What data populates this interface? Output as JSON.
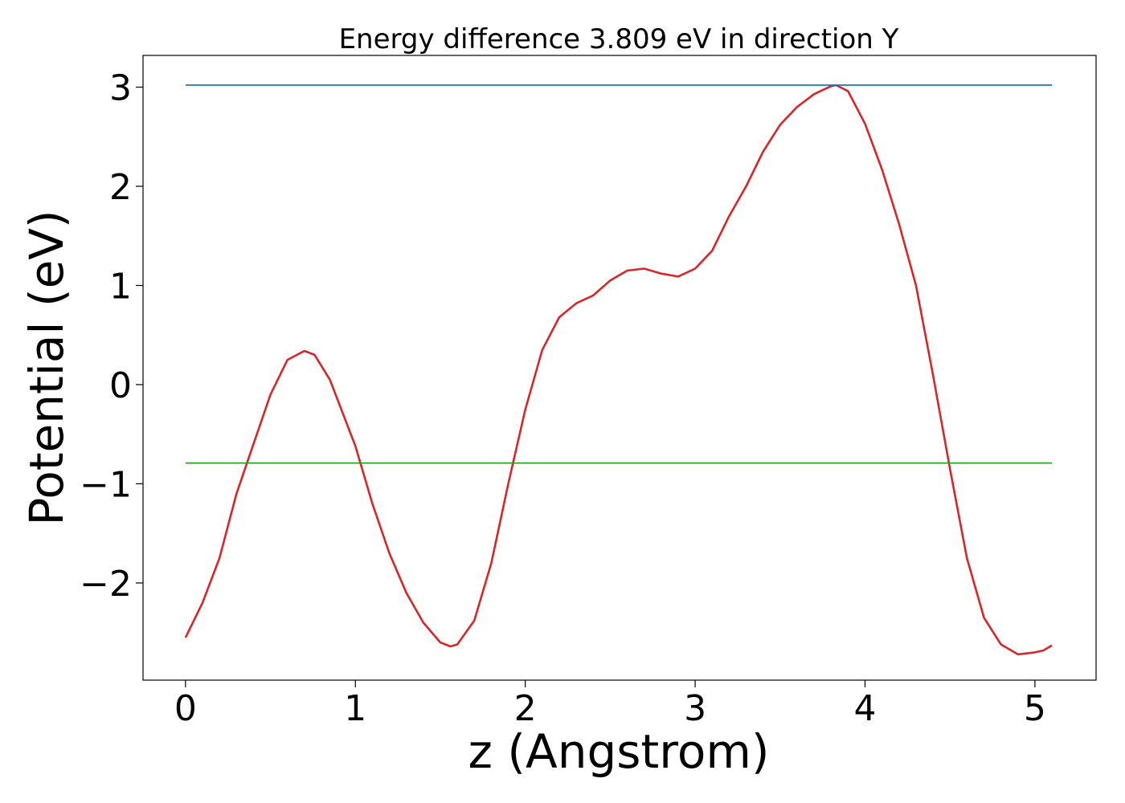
{
  "chart_data": {
    "type": "line",
    "title": "Energy difference 3.809 eV in direction Y",
    "xlabel": "z (Angstrom)",
    "ylabel": "Potential (eV)",
    "xlim": [
      -0.25,
      5.36
    ],
    "ylim": [
      -2.98,
      3.32
    ],
    "x_ticks": [
      0,
      1,
      2,
      3,
      4,
      5
    ],
    "y_ticks": [
      -2,
      -1,
      0,
      1,
      2,
      3
    ],
    "x_tick_labels": [
      "0",
      "1",
      "2",
      "3",
      "4",
      "5"
    ],
    "y_tick_labels": [
      "−2",
      "−1",
      "0",
      "1",
      "2",
      "3"
    ],
    "grid": false,
    "series": [
      {
        "color": "#d62728",
        "x": [
          0.0,
          0.1,
          0.2,
          0.3,
          0.4,
          0.5,
          0.6,
          0.7,
          0.76,
          0.85,
          1.0,
          1.1,
          1.2,
          1.3,
          1.4,
          1.5,
          1.56,
          1.6,
          1.7,
          1.8,
          1.9,
          2.0,
          2.1,
          2.2,
          2.3,
          2.4,
          2.5,
          2.6,
          2.7,
          2.8,
          2.9,
          3.0,
          3.1,
          3.2,
          3.3,
          3.4,
          3.5,
          3.6,
          3.7,
          3.8,
          3.83,
          3.9,
          4.0,
          4.1,
          4.2,
          4.3,
          4.4,
          4.5,
          4.6,
          4.7,
          4.8,
          4.9,
          5.0,
          5.05,
          5.1
        ],
        "y": [
          -2.55,
          -2.2,
          -1.75,
          -1.1,
          -0.6,
          -0.1,
          0.25,
          0.34,
          0.3,
          0.05,
          -0.62,
          -1.2,
          -1.7,
          -2.1,
          -2.4,
          -2.6,
          -2.64,
          -2.62,
          -2.38,
          -1.8,
          -1.0,
          -0.25,
          0.35,
          0.68,
          0.82,
          0.9,
          1.05,
          1.15,
          1.17,
          1.12,
          1.09,
          1.17,
          1.35,
          1.7,
          2.0,
          2.35,
          2.62,
          2.8,
          2.93,
          3.01,
          3.02,
          2.96,
          2.63,
          2.17,
          1.62,
          1.0,
          0.1,
          -0.85,
          -1.75,
          -2.35,
          -2.62,
          -2.72,
          -2.7,
          -2.68,
          -2.63
        ]
      },
      {
        "color": "#1f77b4",
        "x": [
          0.0,
          5.1
        ],
        "y": [
          3.02,
          3.02
        ]
      },
      {
        "color": "#2ca02c",
        "x": [
          0.0,
          5.1
        ],
        "y": [
          -0.79,
          -0.79
        ]
      }
    ]
  }
}
